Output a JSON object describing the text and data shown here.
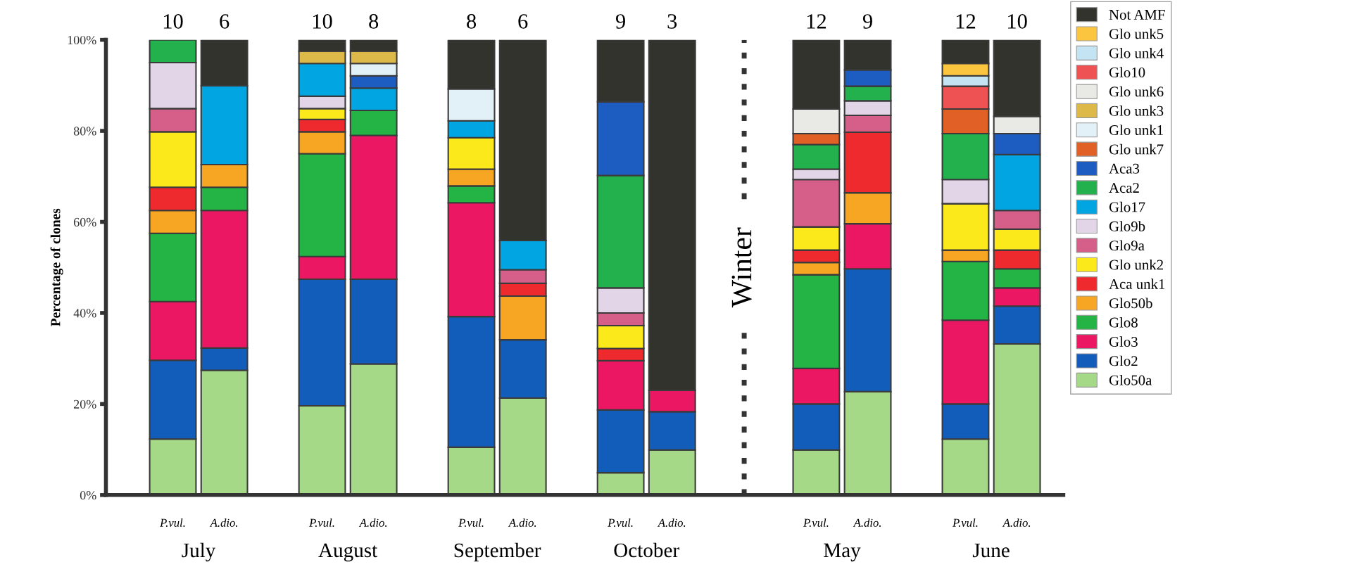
{
  "chart_data": {
    "type": "bar",
    "stacked": true,
    "ylabel": "Percentage of clones",
    "categories": [
      "P.vul.",
      "A.dio.",
      "P.vul.",
      "A.dio.",
      "P.vul.",
      "A.dio.",
      "P.vul.",
      "A.dio.",
      "P.vul.",
      "A.dio.",
      "P.vul.",
      "A.dio."
    ],
    "ylim": [
      0,
      100
    ],
    "yticks": [
      {
        "value": 0,
        "label": "0%"
      },
      {
        "value": 20,
        "label": "20%"
      },
      {
        "value": 40,
        "label": "40%"
      },
      {
        "value": 60,
        "label": "60%"
      },
      {
        "value": 80,
        "label": "80%"
      },
      {
        "value": 100,
        "label": "100%"
      }
    ],
    "annotations": [
      "July",
      "August",
      "September",
      "October",
      "May",
      "June",
      "Winter",
      "10",
      "6",
      "10",
      "8",
      "8",
      "6",
      "9",
      "3",
      "12",
      "9",
      "12",
      "10"
    ],
    "grid": false,
    "legend": "right",
    "series": [
      {
        "name": "Glo50a",
        "color": "#a6d987",
        "values": [
          12.3,
          27.4,
          19.6,
          28.8,
          10.5,
          21.3,
          4.9,
          9.9,
          9.9,
          22.7,
          12.3,
          33.2
        ]
      },
      {
        "name": "Glo2",
        "color": "#135dba",
        "values": [
          17.3,
          4.9,
          27.8,
          18.6,
          28.7,
          12.8,
          13.8,
          8.4,
          10.1,
          27.0,
          7.7,
          8.3
        ]
      },
      {
        "name": "Glo3",
        "color": "#ec1763",
        "values": [
          12.9,
          30.2,
          5.0,
          31.6,
          25.0,
          null,
          10.8,
          4.7,
          7.8,
          9.9,
          18.4,
          4.0
        ]
      },
      {
        "name": "Glo8",
        "color": "#24b446",
        "values": [
          15.0,
          5.1,
          22.6,
          5.5,
          3.7,
          null,
          null,
          null,
          20.6,
          null,
          12.9,
          4.2
        ]
      },
      {
        "name": "Glo50b",
        "color": "#f6a623",
        "values": [
          5.0,
          5.0,
          4.8,
          null,
          3.7,
          9.6,
          null,
          null,
          2.7,
          6.8,
          2.5,
          null
        ]
      },
      {
        "name": "Aca unk1",
        "color": "#ee2a2f",
        "values": [
          5.1,
          null,
          2.7,
          null,
          null,
          2.8,
          2.7,
          null,
          2.7,
          13.3,
          null,
          4.1
        ]
      },
      {
        "name": "Glo unk2",
        "color": "#fbe91c",
        "values": [
          12.2,
          null,
          2.4,
          null,
          6.9,
          null,
          5.0,
          null,
          5.1,
          null,
          10.2,
          4.6
        ]
      },
      {
        "name": "Glo9a",
        "color": "#d55f89",
        "values": [
          5.1,
          null,
          null,
          null,
          null,
          3.0,
          2.8,
          null,
          10.4,
          3.7,
          null,
          4.1
        ]
      },
      {
        "name": "Glo9b",
        "color": "#e3d5e8",
        "values": [
          10.1,
          null,
          2.7,
          null,
          null,
          null,
          5.5,
          null,
          2.3,
          3.2,
          5.3,
          null
        ]
      },
      {
        "name": "Glo17",
        "color": "#00a5e2",
        "values": [
          null,
          17.3,
          7.2,
          4.9,
          3.7,
          6.4,
          null,
          null,
          null,
          null,
          null,
          12.3
        ]
      },
      {
        "name": "Aca2",
        "color": "#22b14c",
        "values": [
          5.0,
          null,
          null,
          null,
          null,
          null,
          24.7,
          null,
          5.4,
          3.2,
          10.1,
          null
        ]
      },
      {
        "name": "Aca3",
        "color": "#1d5cc0",
        "values": [
          null,
          null,
          null,
          2.7,
          null,
          null,
          16.2,
          null,
          null,
          3.6,
          null,
          4.6
        ]
      },
      {
        "name": "Glo unk7",
        "color": "#e06026",
        "values": [
          null,
          null,
          null,
          null,
          null,
          null,
          null,
          null,
          2.4,
          null,
          5.4,
          null
        ]
      },
      {
        "name": "Glo unk1",
        "color": "#e2f1f8",
        "values": [
          null,
          null,
          null,
          2.7,
          7.0,
          null,
          null,
          null,
          null,
          null,
          null,
          null
        ]
      },
      {
        "name": "Glo unk3",
        "color": "#dcb948",
        "values": [
          null,
          null,
          2.7,
          2.7,
          null,
          null,
          null,
          null,
          null,
          null,
          null,
          null
        ]
      },
      {
        "name": "Glo unk6",
        "color": "#e9e9e6",
        "values": [
          null,
          null,
          null,
          null,
          null,
          null,
          null,
          null,
          5.4,
          null,
          null,
          3.8
        ]
      },
      {
        "name": "Glo10",
        "color": "#ee5252",
        "values": [
          null,
          null,
          null,
          null,
          null,
          null,
          null,
          null,
          null,
          null,
          5.0,
          null
        ]
      },
      {
        "name": "Glo unk4",
        "color": "#c4e3f3",
        "values": [
          null,
          null,
          null,
          null,
          null,
          null,
          null,
          null,
          null,
          null,
          2.3,
          null
        ]
      },
      {
        "name": "Glo unk5",
        "color": "#fcc53f",
        "values": [
          null,
          null,
          null,
          null,
          null,
          null,
          null,
          null,
          null,
          null,
          2.7,
          null
        ]
      },
      {
        "name": "Not AMF",
        "color": "#32332d",
        "values": [
          null,
          10.1,
          2.5,
          2.5,
          10.8,
          44.1,
          13.6,
          77.0,
          15.2,
          6.6,
          5.2,
          16.8
        ]
      }
    ]
  }
}
